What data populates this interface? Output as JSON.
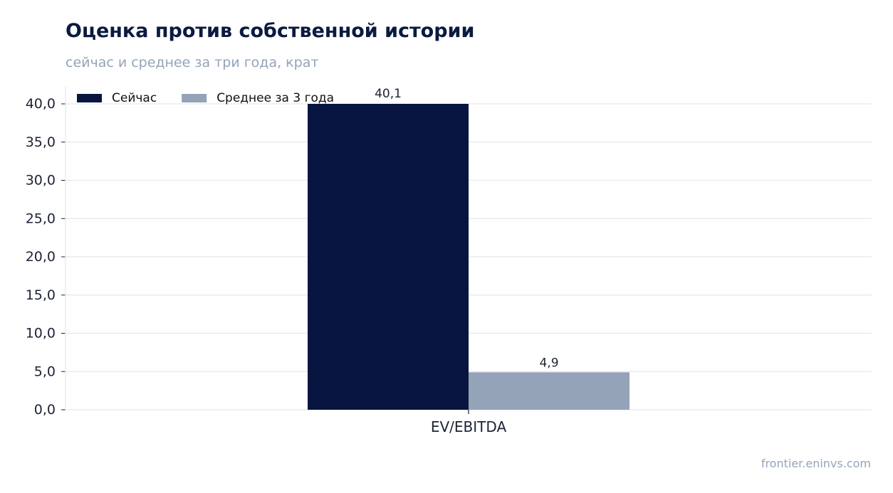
{
  "title": "Оценка против собственной истории",
  "subtitle": "сейчас и среднее за три года, крат",
  "watermark": "frontier.eninvs.com",
  "colors": {
    "series_now": "#071540",
    "series_avg": "#95a3b8",
    "grid": "#e3e7ee",
    "axis_text": "#1c2333",
    "title": "#0a1a40",
    "muted": "#95a3b8"
  },
  "chart_data": {
    "type": "bar",
    "categories": [
      "EV/EBITDA"
    ],
    "series": [
      {
        "name": "Сейчас",
        "values": [
          40.1
        ],
        "labels": [
          "40,1"
        ],
        "color": "#071540"
      },
      {
        "name": "Среднее за 3 года",
        "values": [
          4.9
        ],
        "labels": [
          "4,9"
        ],
        "color": "#95a3b8"
      }
    ],
    "ylim": [
      0,
      40
    ],
    "yticks": [
      0,
      5,
      10,
      15,
      20,
      25,
      30,
      35,
      40
    ],
    "ytick_labels": [
      "0,0",
      "5,0",
      "10,0",
      "15,0",
      "20,0",
      "25,0",
      "30,0",
      "35,0",
      "40,0"
    ],
    "xlabel": "",
    "ylabel": "",
    "grid": true,
    "legend": "top-left"
  }
}
